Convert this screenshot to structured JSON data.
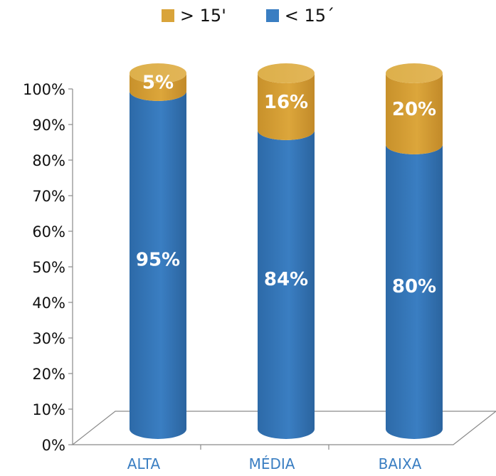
{
  "chart_data": {
    "type": "bar",
    "stacked": true,
    "style": "3d-cylinder",
    "categories": [
      "ALTA",
      "MÉDIA",
      "BAIXA"
    ],
    "series": [
      {
        "name": "< 15´",
        "values": [
          95,
          84,
          80
        ],
        "labels": [
          "95%",
          "84%",
          "80%"
        ],
        "color": "#3a7ec2"
      },
      {
        "name": "> 15'",
        "values": [
          5,
          16,
          20
        ],
        "labels": [
          "5%",
          "16%",
          "20%"
        ],
        "color": "#d9a43a"
      }
    ],
    "legend": {
      "placement": "top",
      "items": [
        {
          "name": "> 15'",
          "color": "#d9a43a"
        },
        {
          "name": "< 15´",
          "color": "#3a7ec2"
        }
      ]
    },
    "y_ticks": [
      "0%",
      "10%",
      "20%",
      "30%",
      "40%",
      "50%",
      "60%",
      "70%",
      "80%",
      "90%",
      "100%"
    ],
    "ylim": [
      0,
      100
    ],
    "grid": false,
    "title": "",
    "xlabel": "",
    "ylabel": ""
  },
  "colors": {
    "category_label": "#3a7ec2",
    "axis": "#8a8a8a",
    "tick_text": "#111111",
    "data_label": "#ffffff"
  }
}
